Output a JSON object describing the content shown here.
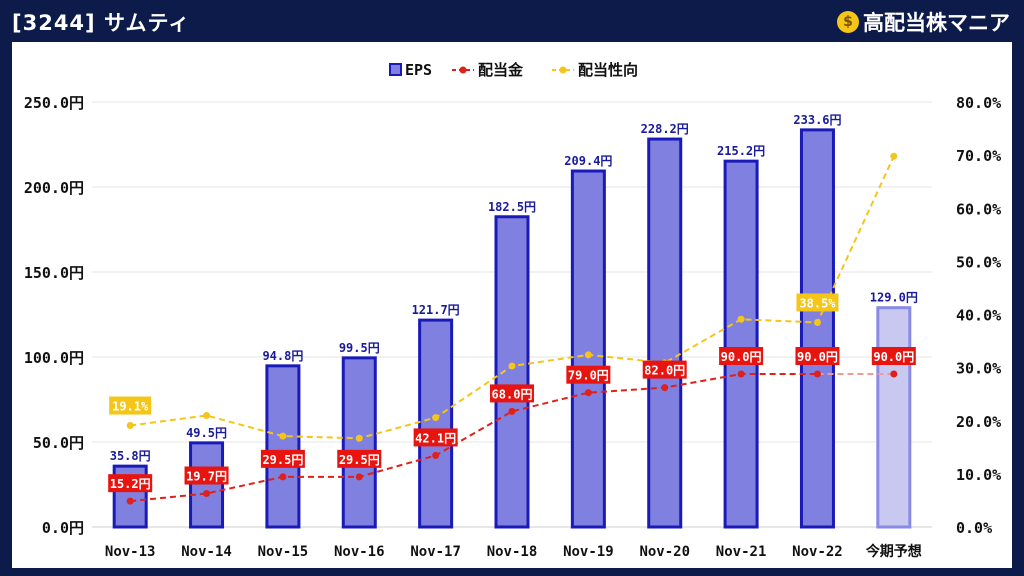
{
  "header": {
    "title": "[3244] サムティ",
    "brand": "高配当株マニア",
    "brand_icon": "money-bag-icon"
  },
  "chart_data": {
    "type": "bar",
    "categories": [
      "Nov-13",
      "Nov-14",
      "Nov-15",
      "Nov-16",
      "Nov-17",
      "Nov-18",
      "Nov-19",
      "Nov-20",
      "Nov-21",
      "Nov-22",
      "今期予想"
    ],
    "legend": [
      "EPS",
      "配当金",
      "配当性向"
    ],
    "legend_position": "top-center",
    "y_left": {
      "ticks": [
        "0.0円",
        "50.0円",
        "100.0円",
        "150.0円",
        "200.0円",
        "250.0円"
      ],
      "ylim": [
        0,
        250
      ]
    },
    "y_right": {
      "ticks": [
        "0.0%",
        "10.0%",
        "20.0%",
        "30.0%",
        "40.0%",
        "50.0%",
        "60.0%",
        "70.0%",
        "80.0%"
      ],
      "ylim": [
        0,
        80
      ]
    },
    "grid": true,
    "series": [
      {
        "name": "EPS",
        "type": "bar",
        "values": [
          35.8,
          49.5,
          94.8,
          99.5,
          121.7,
          182.5,
          209.4,
          228.2,
          215.2,
          233.6,
          129.0
        ],
        "labels": [
          "35.8円",
          "49.5円",
          "94.8円",
          "99.5円",
          "121.7円",
          "182.5円",
          "209.4円",
          "228.2円",
          "215.2円",
          "233.6円",
          "129.0円"
        ],
        "color": "#8080e0",
        "border": "#1a1ab8",
        "forecast_color": "#c8c8f0",
        "forecast_border": "#8a8ae6"
      },
      {
        "name": "配当金",
        "type": "line",
        "values": [
          15.2,
          19.7,
          29.5,
          29.5,
          42.1,
          68.0,
          79.0,
          82.0,
          90.0,
          90.0,
          90.0
        ],
        "labels": [
          "15.2円",
          "19.7円",
          "29.5円",
          "29.5円",
          "42.1円",
          "68.0円",
          "79.0円",
          "82.0円",
          "90.0円",
          "90.0円",
          "90.0円"
        ],
        "color": "#e0201a"
      },
      {
        "name": "配当性向",
        "type": "line",
        "axis": "right",
        "values": [
          19.1,
          21.0,
          17.1,
          16.7,
          20.6,
          30.3,
          32.4,
          30.9,
          39.1,
          38.5,
          69.8
        ],
        "labels": [
          "19.1%",
          "",
          "",
          "",
          "",
          "",
          "",
          "",
          "",
          "38.5%",
          ""
        ],
        "color": "#f5c518"
      }
    ]
  }
}
